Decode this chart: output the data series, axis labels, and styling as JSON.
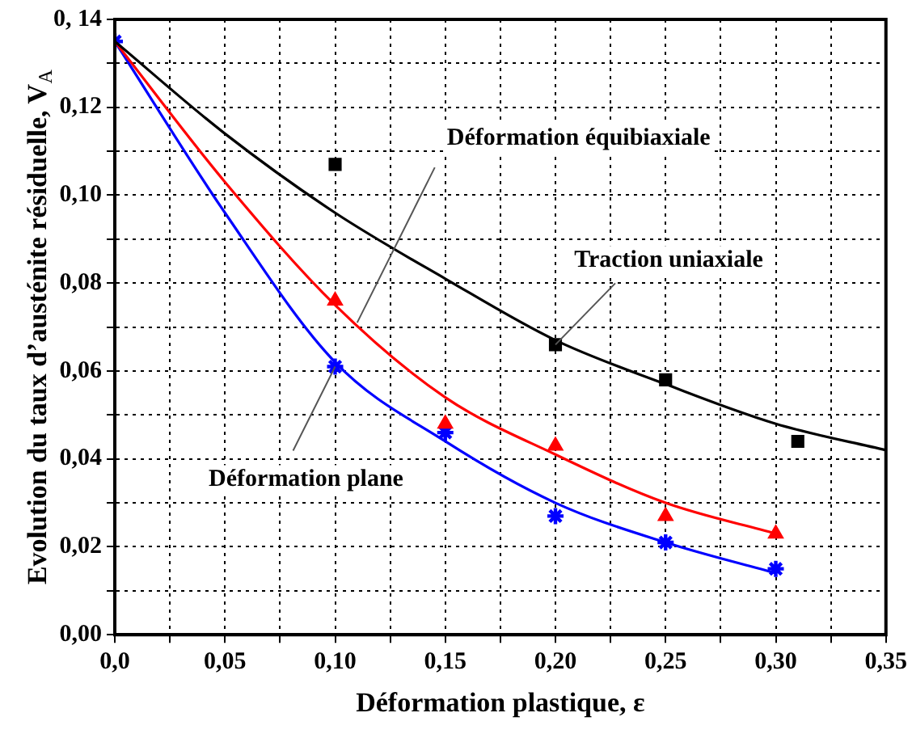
{
  "chart_data": {
    "type": "line",
    "xlabel": "Déformation plastique, ε",
    "ylabel": "Evolution du taux d’austénite résiduelle, V$_{A}$",
    "xlim": [
      0,
      0.35
    ],
    "ylim": [
      0,
      0.14
    ],
    "xticks": [
      {
        "value": 0,
        "label": "0,0"
      },
      {
        "value": 0.025,
        "label": null
      },
      {
        "value": 0.05,
        "label": "0,05"
      },
      {
        "value": 0.075,
        "label": null
      },
      {
        "value": 0.1,
        "label": "0,10"
      },
      {
        "value": 0.125,
        "label": null
      },
      {
        "value": 0.15,
        "label": "0,15"
      },
      {
        "value": 0.175,
        "label": null
      },
      {
        "value": 0.2,
        "label": "0,20"
      },
      {
        "value": 0.225,
        "label": null
      },
      {
        "value": 0.25,
        "label": "0,25"
      },
      {
        "value": 0.275,
        "label": null
      },
      {
        "value": 0.3,
        "label": "0,30"
      },
      {
        "value": 0.325,
        "label": null
      },
      {
        "value": 0.35,
        "label": "0,35"
      }
    ],
    "yticks": [
      {
        "value": 0,
        "label": "0,00"
      },
      {
        "value": 0.01,
        "label": null
      },
      {
        "value": 0.02,
        "label": "0,02"
      },
      {
        "value": 0.03,
        "label": null
      },
      {
        "value": 0.04,
        "label": "0,04"
      },
      {
        "value": 0.05,
        "label": null
      },
      {
        "value": 0.06,
        "label": "0,06"
      },
      {
        "value": 0.07,
        "label": null
      },
      {
        "value": 0.08,
        "label": "0,08"
      },
      {
        "value": 0.09,
        "label": null
      },
      {
        "value": 0.1,
        "label": "0,10"
      },
      {
        "value": 0.11,
        "label": null
      },
      {
        "value": 0.12,
        "label": "0,12"
      },
      {
        "value": 0.13,
        "label": null
      },
      {
        "value": 0.14,
        "label": "0, 14"
      }
    ],
    "grid": true,
    "legend": false,
    "line_style": "solid",
    "series": [
      {
        "marker": "none",
        "color": "#000000",
        "x": [
          0,
          0.05,
          0.1,
          0.15,
          0.2,
          0.25,
          0.3,
          0.35
        ],
        "values": [
          0.135,
          0.114,
          0.096,
          0.081,
          0.067,
          0.057,
          0.048,
          0.042
        ]
      },
      {
        "marker": "none",
        "color": "#ff0000",
        "x": [
          0,
          0.05,
          0.1,
          0.15,
          0.2,
          0.25,
          0.3
        ],
        "values": [
          0.135,
          0.103,
          0.075,
          0.054,
          0.041,
          0.03,
          0.023
        ]
      },
      {
        "marker": "none",
        "color": "#0000ff",
        "x": [
          0,
          0.05,
          0.1,
          0.15,
          0.2,
          0.25,
          0.3
        ],
        "values": [
          0.135,
          0.096,
          0.062,
          0.044,
          0.03,
          0.021,
          0.014
        ]
      },
      {
        "type": "scatter",
        "marker": "square",
        "color": "#000000",
        "x": [
          0.1,
          0.2,
          0.25,
          0.31
        ],
        "values": [
          0.107,
          0.066,
          0.058,
          0.044
        ]
      },
      {
        "type": "scatter",
        "marker": "triangle",
        "color": "#ff0000",
        "x": [
          0.1,
          0.15,
          0.2,
          0.25,
          0.3
        ],
        "values": [
          0.076,
          0.048,
          0.043,
          0.027,
          0.023
        ]
      },
      {
        "type": "scatter",
        "marker": "cross",
        "color": "#0000ff",
        "x": [
          0,
          0.1,
          0.15,
          0.2,
          0.25,
          0.3
        ],
        "values": [
          0.135,
          0.061,
          0.046,
          0.027,
          0.021,
          0.015
        ]
      }
    ],
    "annotations": [
      {
        "text": "Déformation équibiaxiale",
        "x": 0.11,
        "y": 0.071
      },
      {
        "text": "Traction uniaxiale",
        "x": 0.2,
        "y": 0.066
      },
      {
        "text": "Déformation plane",
        "x": 0.1,
        "y": 0.061
      }
    ]
  }
}
